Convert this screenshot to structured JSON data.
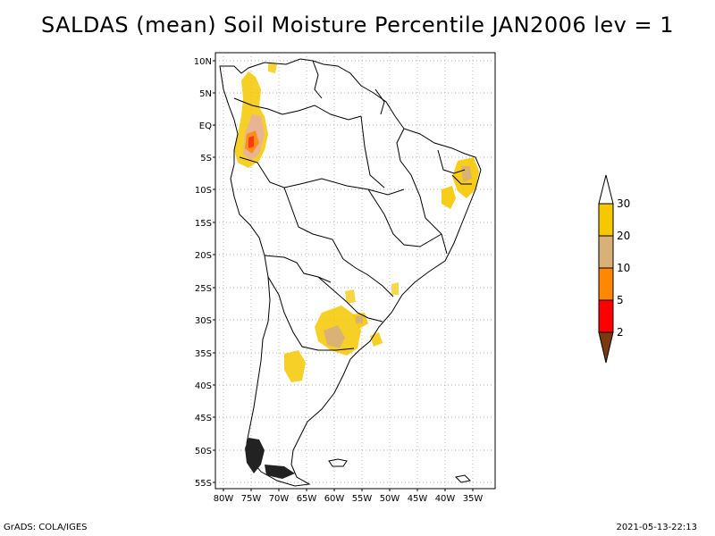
{
  "title": "SALDAS (mean) Soil Moisture Percentile JAN2006 lev = 1",
  "lat_labels": [
    "10N",
    "5N",
    "EQ",
    "5S",
    "10S",
    "15S",
    "20S",
    "25S",
    "30S",
    "35S",
    "40S",
    "45S",
    "50S",
    "55S"
  ],
  "lon_labels": [
    "80W",
    "75W",
    "70W",
    "65W",
    "60W",
    "55W",
    "50W",
    "45W",
    "40W",
    "35W"
  ],
  "colorbar": {
    "labels": [
      "2",
      "5",
      "10",
      "20",
      "30"
    ],
    "colors": [
      "#7a3a10",
      "#ff0000",
      "#ff8800",
      "#d8b078",
      "#f5c800",
      "#ffffff"
    ]
  },
  "footer": {
    "left": "GrADS: COLA/IGES",
    "right": "2021-05-13-22:13"
  }
}
